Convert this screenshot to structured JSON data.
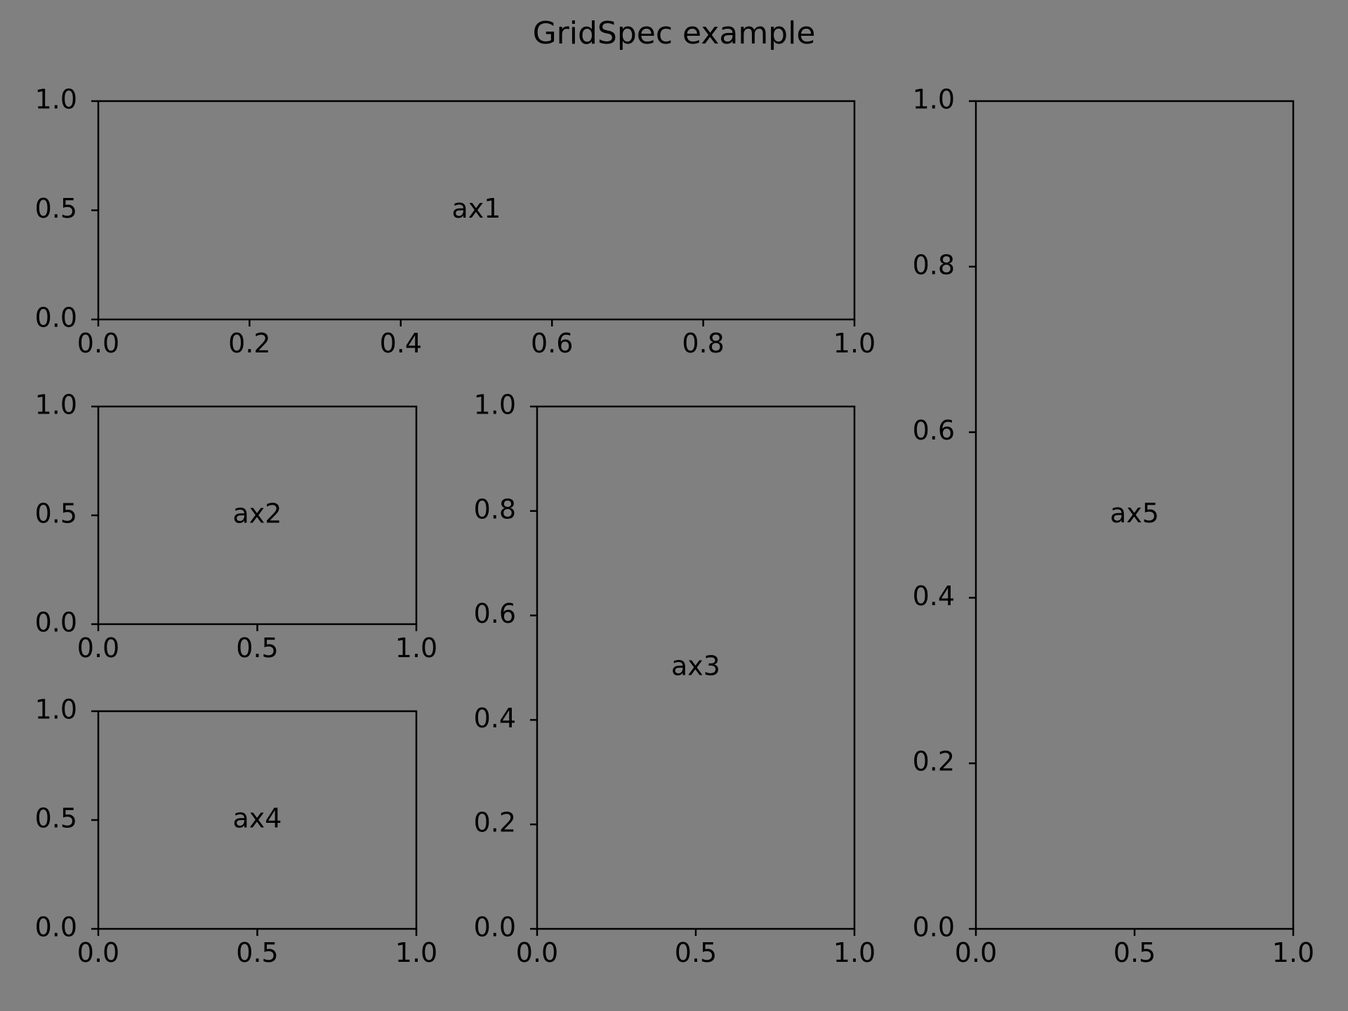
{
  "chart_data": {
    "title": "GridSpec example",
    "background": "#808080",
    "axes_color": "#000000",
    "axes": [
      {
        "name": "ax1",
        "type": "table",
        "label": "ax1",
        "xlim": [
          0.0,
          1.0
        ],
        "ylim": [
          0.0,
          1.0
        ],
        "xticks": [
          "0.0",
          "0.2",
          "0.4",
          "0.6",
          "0.8",
          "1.0"
        ],
        "yticks": [
          "0.0",
          "0.5",
          "1.0"
        ],
        "grid": false
      },
      {
        "name": "ax2",
        "type": "table",
        "label": "ax2",
        "xlim": [
          0.0,
          1.0
        ],
        "ylim": [
          0.0,
          1.0
        ],
        "xticks": [
          "0.0",
          "0.5",
          "1.0"
        ],
        "yticks": [
          "0.0",
          "0.5",
          "1.0"
        ],
        "grid": false
      },
      {
        "name": "ax3",
        "type": "table",
        "label": "ax3",
        "xlim": [
          0.0,
          1.0
        ],
        "ylim": [
          0.0,
          1.0
        ],
        "xticks": [
          "0.0",
          "0.5",
          "1.0"
        ],
        "yticks": [
          "0.0",
          "0.2",
          "0.4",
          "0.6",
          "0.8",
          "1.0"
        ],
        "grid": false
      },
      {
        "name": "ax4",
        "type": "table",
        "label": "ax4",
        "xlim": [
          0.0,
          1.0
        ],
        "ylim": [
          0.0,
          1.0
        ],
        "xticks": [
          "0.0",
          "0.5",
          "1.0"
        ],
        "yticks": [
          "0.0",
          "0.5",
          "1.0"
        ],
        "grid": false
      },
      {
        "name": "ax5",
        "type": "table",
        "label": "ax5",
        "xlim": [
          0.0,
          1.0
        ],
        "ylim": [
          0.0,
          1.0
        ],
        "xticks": [
          "0.0",
          "0.5",
          "1.0"
        ],
        "yticks": [
          "0.0",
          "0.2",
          "0.4",
          "0.6",
          "0.8",
          "1.0"
        ],
        "grid": false
      }
    ]
  }
}
